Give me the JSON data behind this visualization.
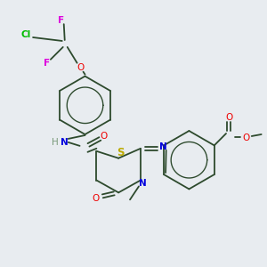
{
  "background_color": "#e8ecf0",
  "atom_colors": {
    "C": "#2d4a2d",
    "H": "#7a9a7a",
    "N": "#0000dd",
    "O": "#ee0000",
    "S": "#bbaa00",
    "F": "#dd00dd",
    "Cl": "#00bb00"
  },
  "bond_color": "#2d4a2d",
  "bond_lw": 1.3,
  "font_size": 7.5
}
